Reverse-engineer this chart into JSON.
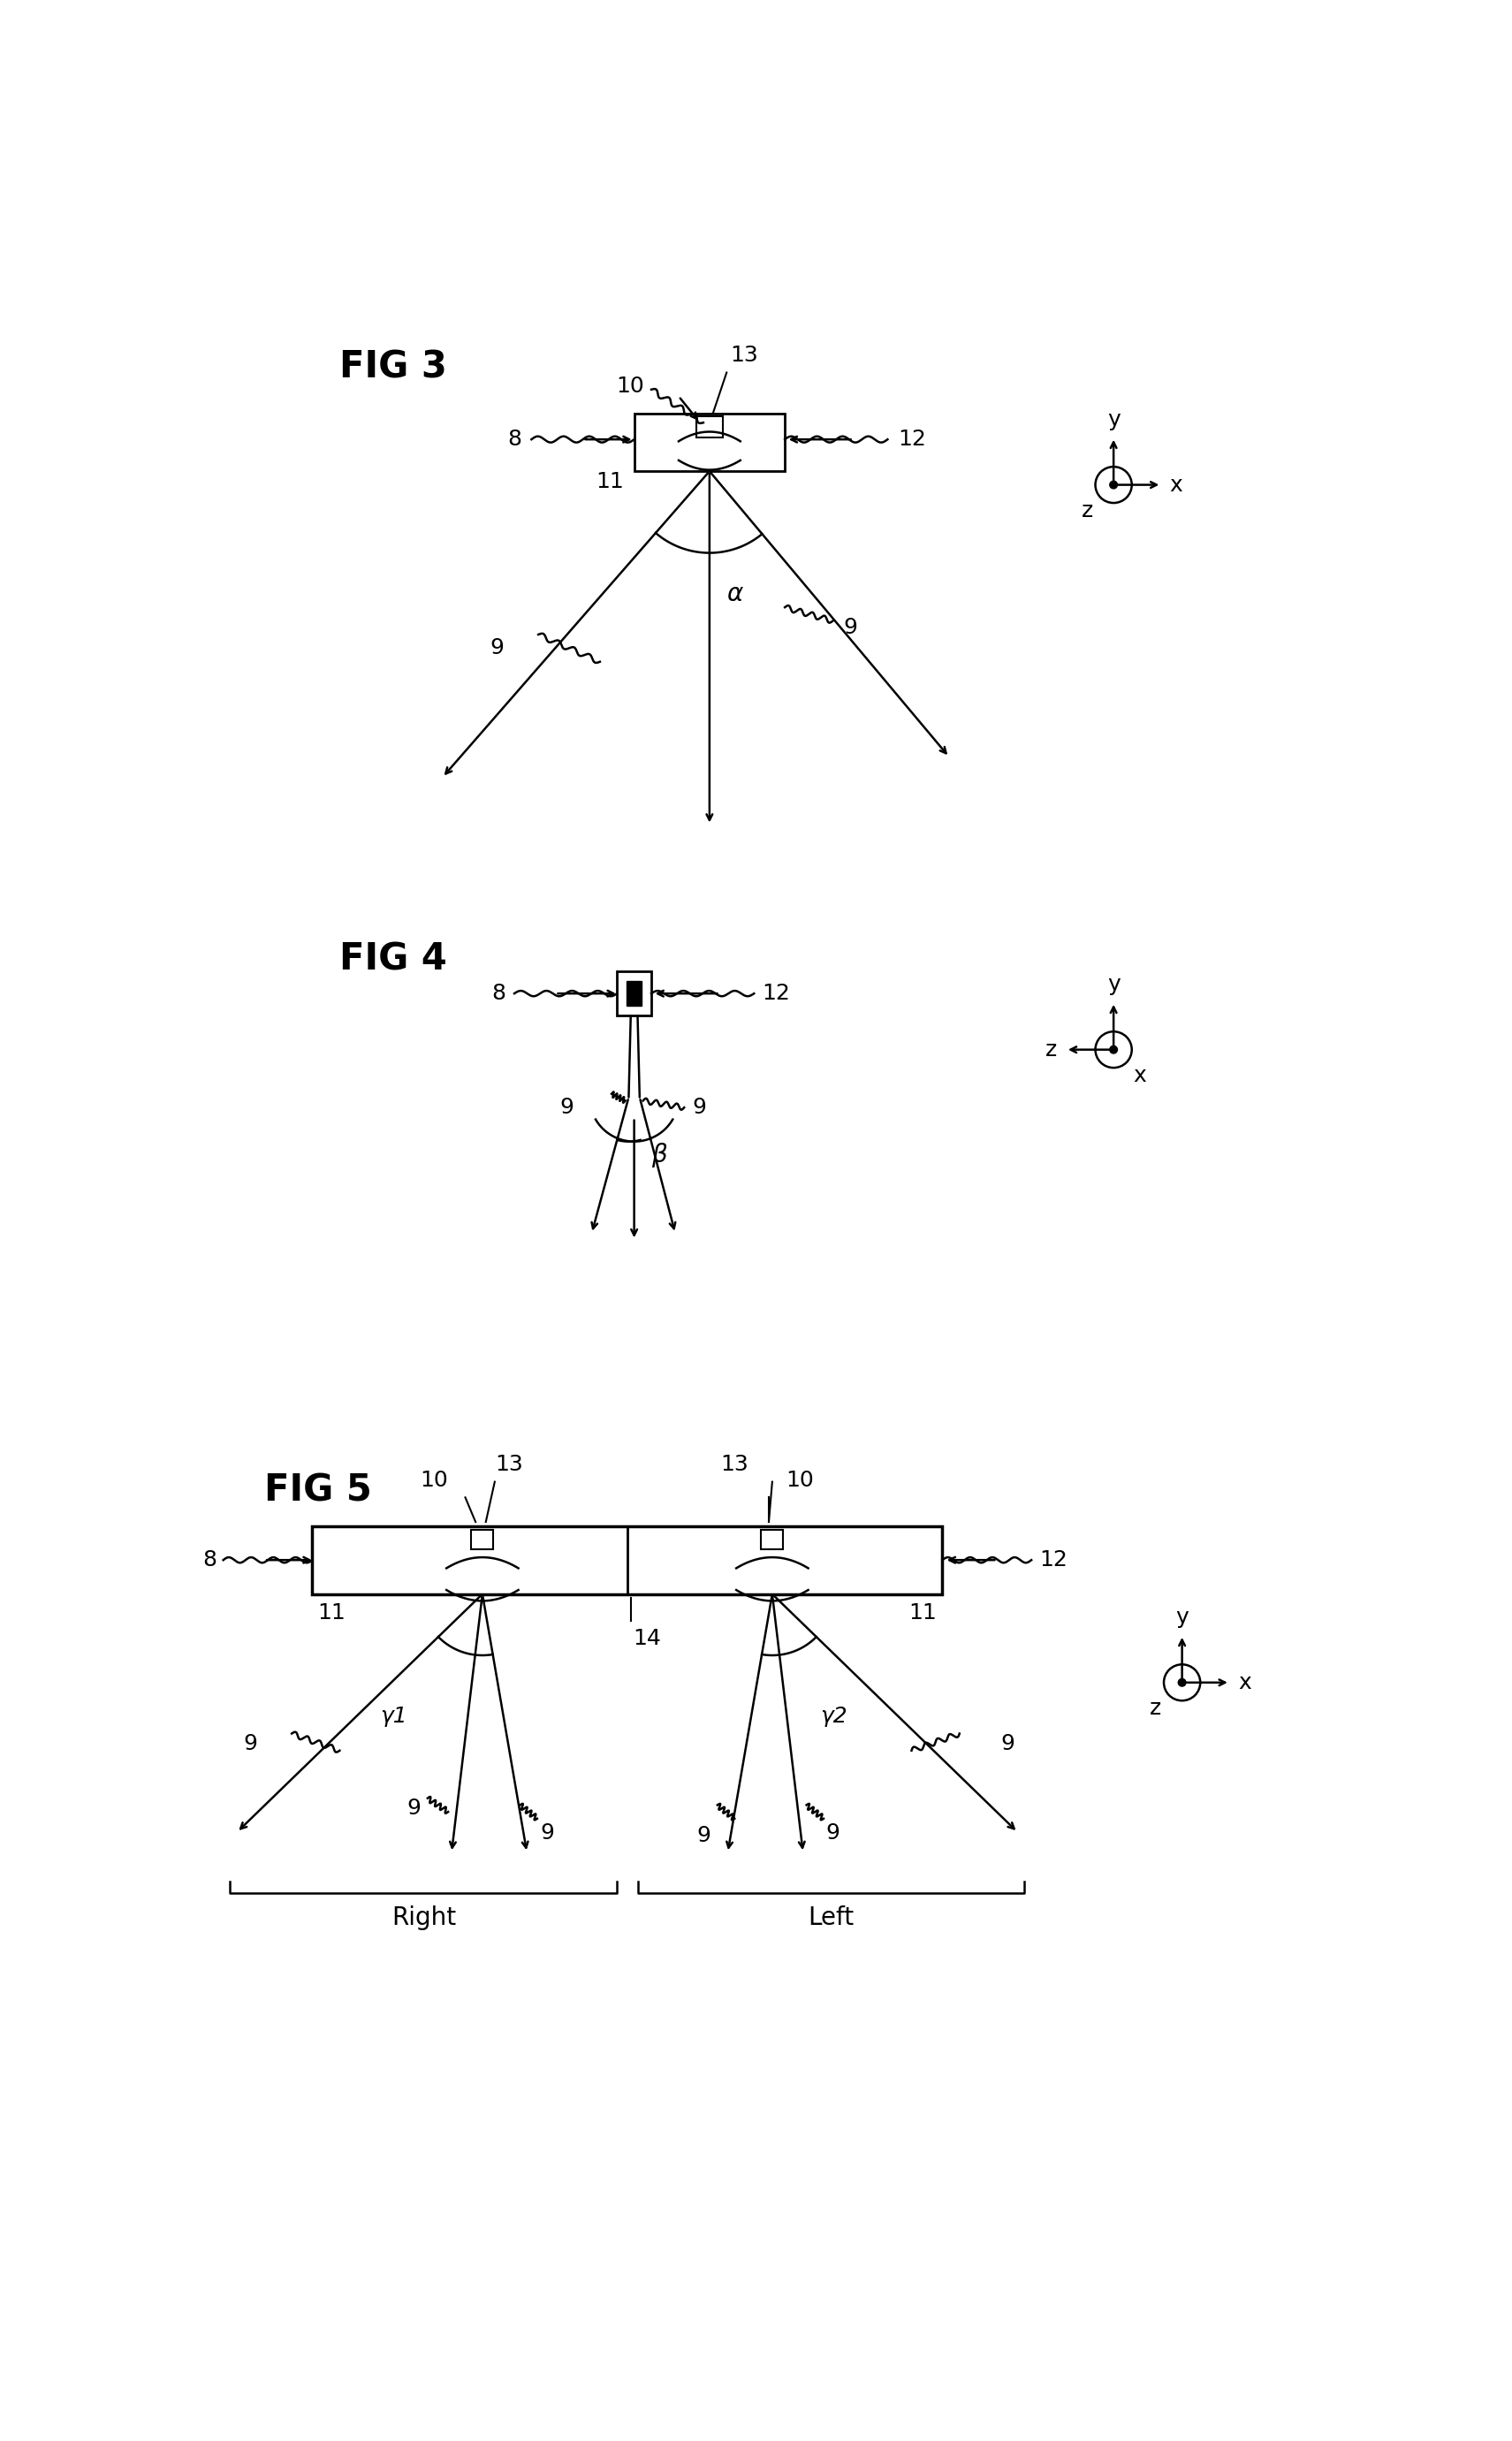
{
  "bg_color": "#ffffff",
  "line_color": "#000000",
  "fig3_title": "FIG 3",
  "fig4_title": "FIG 4",
  "fig5_title": "FIG 5",
  "lw": 1.8,
  "arrow_ms": 12,
  "label_fs": 18,
  "title_fs": 30
}
